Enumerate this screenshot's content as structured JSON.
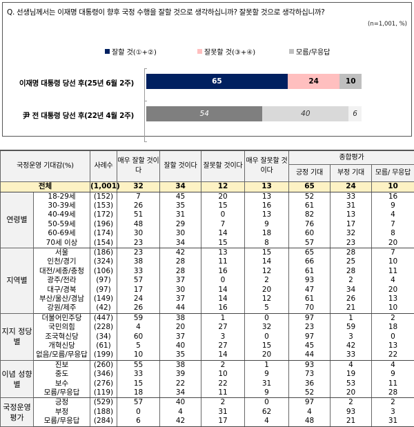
{
  "question": "Q. 선생님께서는 이재명 대통령이 향후 국정 수행을 잘할 것으로 생각하십니까? 잘못할 것으로 생각하십니까?",
  "note": "(n=1,001, %)",
  "legend": [
    {
      "label": "잘할 것(①+②)",
      "color": "#002060"
    },
    {
      "label": "잘못할 것(③+④)",
      "color": "#ffbfbf"
    },
    {
      "label": "모름/무응답",
      "color": "#bfbfbf"
    }
  ],
  "chart_data": {
    "type": "bar",
    "orientation": "horizontal-stacked-100",
    "title": "Q. 선생님께서는 이재명 대통령이 향후 국정 수행을 잘할 것으로 생각하십니까? 잘못할 것으로 생각하십니까?",
    "note": "(n=1,001, %)",
    "categories": [
      "이재명 대통령 당선 후(25년 6월 2주)",
      "尹 전 대통령 당선 후(22년 4월 2주)"
    ],
    "series": [
      {
        "name": "잘할 것(①+②)",
        "values": [
          65,
          54
        ],
        "colors": [
          "#002060",
          "#7f7f7f"
        ]
      },
      {
        "name": "잘못할 것(③+④)",
        "values": [
          24,
          40
        ],
        "colors": [
          "#ffbfbf",
          "#d9d9d9"
        ]
      },
      {
        "name": "모름/무응답",
        "values": [
          10,
          6
        ],
        "colors": [
          "#bfbfbf",
          "#f2f2f2"
        ]
      }
    ],
    "legend_position": "top",
    "xlim": [
      0,
      100
    ]
  },
  "bars": [
    {
      "label": "이재명 대통령 당선 후(25년 6월 2주)",
      "segments": [
        {
          "value": "65",
          "pct": 65,
          "bg": "#002060",
          "fg": "#ffffff"
        },
        {
          "value": "24",
          "pct": 24,
          "bg": "#ffbfbf",
          "fg": "#000000"
        },
        {
          "value": "10",
          "pct": 10,
          "bg": "#bfbfbf",
          "fg": "#000000"
        }
      ]
    },
    {
      "label": "尹 전 대통령 당선 후(22년 4월 2주)",
      "segments": [
        {
          "value": "54",
          "pct": 54,
          "bg": "#7f7f7f",
          "fg": "#ffffff"
        },
        {
          "value": "40",
          "pct": 40,
          "bg": "#d9d9d9",
          "fg": "#333333"
        },
        {
          "value": "6",
          "pct": 6,
          "bg": "#f2f2f2",
          "fg": "#333333"
        }
      ]
    }
  ],
  "table": {
    "headers": {
      "category": "국정운영 기대감(%)",
      "n": "사례수",
      "very_good": "매우 잘할 것이다",
      "good": "잘할 것이다",
      "bad": "잘못할 것이다",
      "very_bad": "매우 잘못할 것이다",
      "overall": "종합평가",
      "positive": "긍정 기대",
      "negative": "부정 기대",
      "dk": "모름/ 무응답"
    },
    "total": {
      "label": "전체",
      "n": "(1,001)",
      "values": [
        "32",
        "34",
        "12",
        "13",
        "65",
        "24",
        "10"
      ]
    },
    "groups": [
      {
        "name": "연령별",
        "rows": [
          {
            "label": "18-29세",
            "n": "(152)",
            "values": [
              "7",
              "45",
              "20",
              "13",
              "52",
              "33",
              "16"
            ]
          },
          {
            "label": "30-39세",
            "n": "(153)",
            "values": [
              "26",
              "35",
              "15",
              "16",
              "61",
              "31",
              "9"
            ]
          },
          {
            "label": "40-49세",
            "n": "(172)",
            "values": [
              "51",
              "31",
              "0",
              "13",
              "82",
              "13",
              "4"
            ]
          },
          {
            "label": "50-59세",
            "n": "(196)",
            "values": [
              "48",
              "29",
              "7",
              "9",
              "76",
              "17",
              "7"
            ]
          },
          {
            "label": "60-69세",
            "n": "(174)",
            "values": [
              "30",
              "30",
              "14",
              "18",
              "60",
              "32",
              "8"
            ]
          },
          {
            "label": "70세 이상",
            "n": "(154)",
            "values": [
              "23",
              "34",
              "15",
              "8",
              "57",
              "23",
              "20"
            ]
          }
        ]
      },
      {
        "name": "지역별",
        "rows": [
          {
            "label": "서울",
            "n": "(186)",
            "values": [
              "23",
              "42",
              "13",
              "15",
              "65",
              "28",
              "7"
            ]
          },
          {
            "label": "인천/경기",
            "n": "(324)",
            "values": [
              "38",
              "28",
              "11",
              "14",
              "66",
              "25",
              "10"
            ]
          },
          {
            "label": "대전/세종/충청",
            "n": "(106)",
            "values": [
              "33",
              "28",
              "16",
              "12",
              "61",
              "28",
              "11"
            ]
          },
          {
            "label": "광주/전라",
            "n": "(97)",
            "values": [
              "57",
              "37",
              "0",
              "2",
              "93",
              "2",
              "4"
            ]
          },
          {
            "label": "대구/경북",
            "n": "(97)",
            "values": [
              "17",
              "30",
              "14",
              "20",
              "47",
              "34",
              "20"
            ]
          },
          {
            "label": "부산/울산/경남",
            "n": "(149)",
            "values": [
              "24",
              "37",
              "14",
              "12",
              "61",
              "26",
              "13"
            ]
          },
          {
            "label": "강원/제주",
            "n": "(42)",
            "values": [
              "26",
              "44",
              "16",
              "5",
              "70",
              "21",
              "10"
            ]
          }
        ]
      },
      {
        "name": "지지 정당별",
        "rows": [
          {
            "label": "더불어민주당",
            "n": "(447)",
            "values": [
              "59",
              "38",
              "1",
              "0",
              "97",
              "1",
              "2"
            ]
          },
          {
            "label": "국민의힘",
            "n": "(228)",
            "values": [
              "4",
              "20",
              "27",
              "32",
              "23",
              "59",
              "18"
            ]
          },
          {
            "label": "조국혁신당",
            "n": "(34)",
            "values": [
              "60",
              "37",
              "3",
              "0",
              "97",
              "3",
              "0"
            ]
          },
          {
            "label": "개혁신당",
            "n": "(61)",
            "values": [
              "5",
              "40",
              "27",
              "15",
              "45",
              "42",
              "13"
            ]
          },
          {
            "label": "없음/모름/무응답",
            "n": "(199)",
            "values": [
              "10",
              "35",
              "14",
              "20",
              "44",
              "33",
              "22"
            ]
          }
        ]
      },
      {
        "name": "이념 성향별",
        "rows": [
          {
            "label": "진보",
            "n": "(260)",
            "values": [
              "55",
              "38",
              "2",
              "1",
              "93",
              "4",
              "4"
            ]
          },
          {
            "label": "중도",
            "n": "(346)",
            "values": [
              "33",
              "39",
              "10",
              "9",
              "73",
              "19",
              "9"
            ]
          },
          {
            "label": "보수",
            "n": "(276)",
            "values": [
              "15",
              "22",
              "22",
              "31",
              "36",
              "53",
              "11"
            ]
          },
          {
            "label": "모름/무응답",
            "n": "(119)",
            "values": [
              "18",
              "34",
              "11",
              "9",
              "52",
              "20",
              "28"
            ]
          }
        ]
      },
      {
        "name": "국정운영 평가",
        "rows": [
          {
            "label": "긍정",
            "n": "(529)",
            "values": [
              "57",
              "40",
              "2",
              "0",
              "97",
              "2",
              "2"
            ]
          },
          {
            "label": "부정",
            "n": "(188)",
            "values": [
              "0",
              "4",
              "31",
              "62",
              "4",
              "93",
              "3"
            ]
          },
          {
            "label": "모름/무응답",
            "n": "(284)",
            "values": [
              "6",
              "42",
              "17",
              "4",
              "48",
              "21",
              "31"
            ]
          }
        ]
      }
    ]
  }
}
